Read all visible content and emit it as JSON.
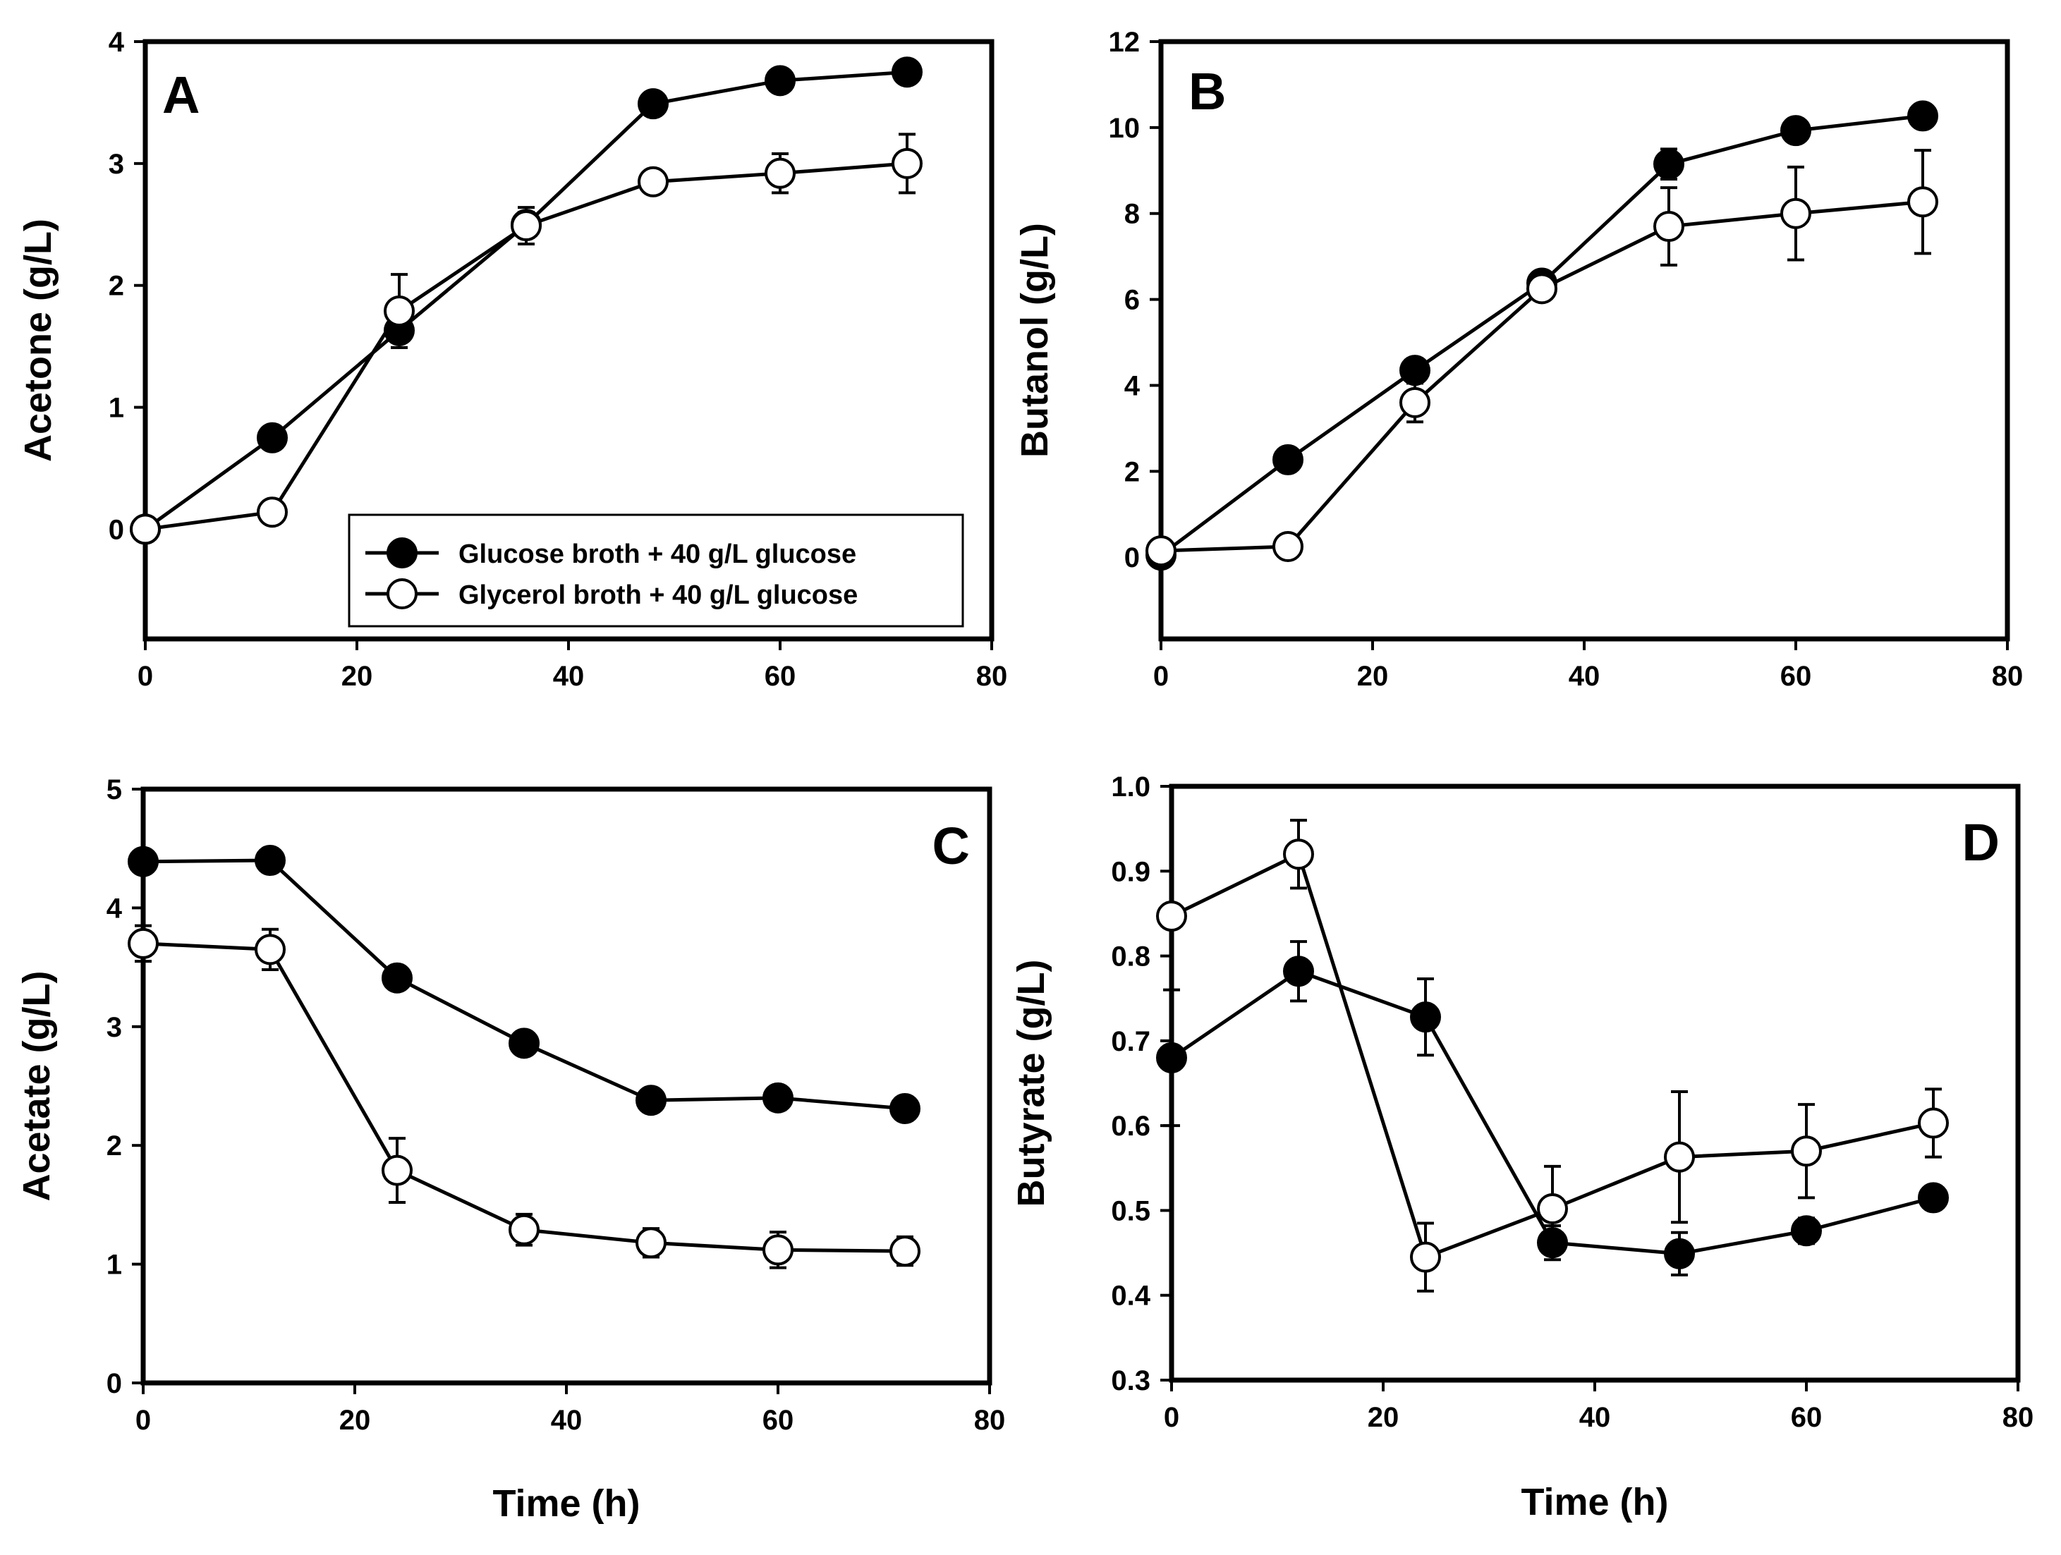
{
  "colors": {
    "glucose_marker": "#000000",
    "glycerol_marker": "#ffffff",
    "line": "#000000",
    "background": "#ffffff"
  },
  "legend": {
    "glucose": "Glucose broth + 40 g/L glucose",
    "glycerol": "Glycerol broth + 40 g/L glucose"
  },
  "chart_data": [
    {
      "panel": "A",
      "type": "line",
      "ylabel": "Acetone (g/L)",
      "xlabel": "",
      "xlim": [
        0,
        80
      ],
      "ylim": [
        -0.9,
        4
      ],
      "xticks": [
        "0",
        "20",
        "40",
        "60",
        "80"
      ],
      "yticks": [
        "0",
        "1",
        "2",
        "3",
        "4"
      ],
      "x": [
        0,
        12,
        24,
        36,
        48,
        60,
        72
      ],
      "series": [
        {
          "name": "Glucose broth + 40 g/L glucose",
          "key": "glucose",
          "values": [
            0,
            0.75,
            1.63,
            2.5,
            3.49,
            3.68,
            3.75
          ],
          "errors": [
            0,
            0,
            0.14,
            0.1,
            0,
            0,
            0
          ]
        },
        {
          "name": "Glycerol broth + 40 g/L glucose",
          "key": "glycerol",
          "values": [
            0,
            0.14,
            1.79,
            2.49,
            2.85,
            2.92,
            3.0
          ],
          "errors": [
            0,
            0,
            0.3,
            0.15,
            0,
            0.16,
            0.24
          ]
        }
      ]
    },
    {
      "panel": "B",
      "type": "line",
      "ylabel": "Butanol (g/L)",
      "xlabel": "",
      "xlim": [
        0,
        80
      ],
      "ylim": [
        -1.9,
        12
      ],
      "xticks": [
        "0",
        "20",
        "40",
        "60",
        "80"
      ],
      "yticks": [
        "0",
        "2",
        "4",
        "6",
        "8",
        "10",
        "12"
      ],
      "x": [
        0,
        12,
        24,
        36,
        48,
        60,
        72
      ],
      "series": [
        {
          "name": "Glucose broth + 40 g/L glucose",
          "key": "glucose",
          "values": [
            0.05,
            2.27,
            4.35,
            6.38,
            9.15,
            9.93,
            10.27
          ],
          "errors": [
            0,
            0,
            0,
            0,
            0.35,
            0,
            0
          ]
        },
        {
          "name": "Glycerol broth + 40 g/L glucose",
          "key": "glycerol",
          "values": [
            0.15,
            0.25,
            3.6,
            6.25,
            7.7,
            8.0,
            8.27
          ],
          "errors": [
            0,
            0,
            0.45,
            0,
            0.9,
            1.08,
            1.2
          ]
        }
      ]
    },
    {
      "panel": "C",
      "type": "line",
      "ylabel": "Acetate (g/L)",
      "xlabel": "Time (h)",
      "xlim": [
        0,
        80
      ],
      "ylim": [
        0,
        5
      ],
      "xticks": [
        "0",
        "20",
        "40",
        "60",
        "80"
      ],
      "yticks": [
        "0",
        "1",
        "2",
        "3",
        "4",
        "5"
      ],
      "x": [
        0,
        12,
        24,
        36,
        48,
        60,
        72
      ],
      "series": [
        {
          "name": "Glucose broth + 40 g/L glucose",
          "key": "glucose",
          "values": [
            4.39,
            4.4,
            3.41,
            2.86,
            2.38,
            2.4,
            2.31
          ],
          "errors": [
            0,
            0,
            0,
            0,
            0,
            0.1,
            0
          ]
        },
        {
          "name": "Glycerol broth + 40 g/L glucose",
          "key": "glycerol",
          "values": [
            3.7,
            3.65,
            1.79,
            1.29,
            1.18,
            1.12,
            1.11
          ],
          "errors": [
            0.15,
            0.17,
            0.27,
            0.13,
            0.12,
            0.15,
            0.12
          ]
        }
      ]
    },
    {
      "panel": "D",
      "type": "line",
      "ylabel": "Butyrate (g/L)",
      "xlabel": "Time (h)",
      "xlim": [
        0,
        80
      ],
      "ylim": [
        0.3,
        1.0
      ],
      "xticks": [
        "0",
        "20",
        "40",
        "60",
        "80"
      ],
      "yticks": [
        "0.3",
        "0.4",
        "0.5",
        "0.6",
        "0.7",
        "0.8",
        "0.9",
        "1.0"
      ],
      "x": [
        0,
        12,
        24,
        36,
        48,
        60,
        72
      ],
      "series": [
        {
          "name": "Glucose broth + 40 g/L glucose",
          "key": "glucose",
          "values": [
            0.68,
            0.782,
            0.728,
            0.462,
            0.449,
            0.476,
            0.515
          ],
          "errors": [
            0.08,
            0.035,
            0.045,
            0.02,
            0.025,
            0.015,
            0
          ]
        },
        {
          "name": "Glycerol broth + 40 g/L glucose",
          "key": "glycerol",
          "values": [
            0.847,
            0.92,
            0.445,
            0.502,
            0.563,
            0.57,
            0.603
          ],
          "errors": [
            0,
            0.04,
            0.04,
            0.05,
            0.077,
            0.055,
            0.04
          ]
        }
      ]
    }
  ]
}
